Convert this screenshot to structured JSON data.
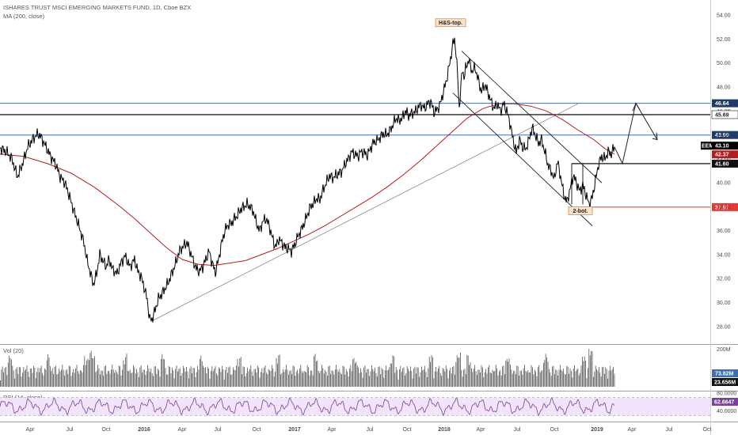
{
  "header": {
    "symbol_line": "ISHARES TRUST MSCI EMERGING MARKETS FUND, 1D, Cboe BZX",
    "ma_line": "MA (200, close)"
  },
  "chart_data": [
    {
      "type": "line",
      "pane": "price",
      "title": "ISHARES TRUST MSCI EMERGING MARKETS FUND, 1D, Cboe BZX",
      "ylim": [
        26.6,
        55.0
      ],
      "y_ticks": [
        "54.00",
        "52.00",
        "50.00",
        "48.00",
        "46.00",
        "44.00",
        "42.00",
        "40.00",
        "38.00",
        "36.00",
        "34.00",
        "32.00",
        "30.00",
        "28.00"
      ],
      "x_ticks": [
        "Apr",
        "Jul",
        "Oct",
        "2016",
        "Apr",
        "Jul",
        "Oct",
        "2017",
        "Apr",
        "Jul",
        "Oct",
        "2018",
        "Apr",
        "Jul",
        "Oct",
        "2019",
        "Apr",
        "Jul",
        "Oct"
      ],
      "series": [
        {
          "name": "EEM",
          "color": "#000000",
          "points": [
            [
              0,
              42.9
            ],
            [
              8,
              42.6
            ],
            [
              15,
              42.0
            ],
            [
              22,
              40.5
            ],
            [
              28,
              41.5
            ],
            [
              35,
              43.0
            ],
            [
              42,
              43.7
            ],
            [
              48,
              44.1
            ],
            [
              52,
              43.8
            ],
            [
              58,
              43.0
            ],
            [
              64,
              42.2
            ],
            [
              70,
              41.6
            ],
            [
              76,
              40.5
            ],
            [
              82,
              40.0
            ],
            [
              88,
              38.8
            ],
            [
              94,
              37.5
            ],
            [
              100,
              36.3
            ],
            [
              106,
              35.0
            ],
            [
              110,
              33.5
            ],
            [
              114,
              32.5
            ],
            [
              118,
              31.5
            ],
            [
              122,
              32.4
            ],
            [
              126,
              34.0
            ],
            [
              130,
              33.5
            ],
            [
              134,
              33.0
            ],
            [
              138,
              33.6
            ],
            [
              142,
              32.8
            ],
            [
              148,
              32.4
            ],
            [
              152,
              33.2
            ],
            [
              158,
              33.9
            ],
            [
              164,
              33.0
            ],
            [
              170,
              33.6
            ],
            [
              174,
              32.6
            ],
            [
              178,
              32.2
            ],
            [
              182,
              31.3
            ],
            [
              186,
              30.2
            ],
            [
              189,
              28.6
            ],
            [
              192,
              28.6
            ],
            [
              196,
              29.4
            ],
            [
              200,
              30.3
            ],
            [
              206,
              30.9
            ],
            [
              212,
              31.6
            ],
            [
              218,
              32.6
            ],
            [
              222,
              33.3
            ],
            [
              226,
              34.2
            ],
            [
              230,
              34.6
            ],
            [
              236,
              35.0
            ],
            [
              240,
              34.3
            ],
            [
              244,
              33.5
            ],
            [
              248,
              32.8
            ],
            [
              252,
              32.6
            ],
            [
              256,
              33.0
            ],
            [
              260,
              33.6
            ],
            [
              264,
              34.3
            ],
            [
              268,
              33.3
            ],
            [
              272,
              32.5
            ],
            [
              276,
              33.6
            ],
            [
              280,
              35.0
            ],
            [
              284,
              36.0
            ],
            [
              288,
              36.5
            ],
            [
              292,
              36.6
            ],
            [
              296,
              37.0
            ],
            [
              300,
              37.3
            ],
            [
              304,
              37.8
            ],
            [
              308,
              38.0
            ],
            [
              312,
              38.2
            ],
            [
              316,
              38.0
            ],
            [
              320,
              37.6
            ],
            [
              324,
              36.6
            ],
            [
              328,
              36.0
            ],
            [
              332,
              36.8
            ],
            [
              336,
              37.0
            ],
            [
              340,
              36.4
            ],
            [
              344,
              35.4
            ],
            [
              348,
              34.6
            ],
            [
              352,
              35.3
            ],
            [
              356,
              35.0
            ],
            [
              360,
              34.6
            ],
            [
              364,
              34.5
            ],
            [
              368,
              34.3
            ],
            [
              372,
              34.8
            ],
            [
              376,
              35.5
            ],
            [
              380,
              36.0
            ],
            [
              384,
              36.6
            ],
            [
              388,
              37.3
            ],
            [
              392,
              38.0
            ],
            [
              396,
              38.3
            ],
            [
              400,
              38.7
            ],
            [
              404,
              38.6
            ],
            [
              408,
              39.4
            ],
            [
              412,
              40.0
            ],
            [
              416,
              40.6
            ],
            [
              420,
              40.4
            ],
            [
              424,
              40.6
            ],
            [
              428,
              40.8
            ],
            [
              432,
              41.0
            ],
            [
              436,
              41.6
            ],
            [
              440,
              42.0
            ],
            [
              444,
              42.6
            ],
            [
              448,
              42.4
            ],
            [
              452,
              42.2
            ],
            [
              456,
              42.6
            ],
            [
              460,
              42.5
            ],
            [
              464,
              42.3
            ],
            [
              468,
              42.9
            ],
            [
              472,
              43.4
            ],
            [
              476,
              43.5
            ],
            [
              480,
              43.8
            ],
            [
              484,
              44.1
            ],
            [
              488,
              44.0
            ],
            [
              492,
              44.3
            ],
            [
              496,
              44.8
            ],
            [
              500,
              45.4
            ],
            [
              504,
              45.2
            ],
            [
              508,
              45.4
            ],
            [
              512,
              46.0
            ],
            [
              516,
              45.6
            ],
            [
              520,
              45.8
            ],
            [
              524,
              45.9
            ],
            [
              528,
              46.3
            ],
            [
              532,
              46.5
            ],
            [
              536,
              46.2
            ],
            [
              540,
              46.6
            ],
            [
              544,
              46.8
            ],
            [
              548,
              45.9
            ],
            [
              552,
              46.1
            ],
            [
              556,
              46.6
            ],
            [
              560,
              47.6
            ],
            [
              564,
              48.6
            ],
            [
              568,
              50.0
            ],
            [
              572,
              51.6
            ],
            [
              574,
              52.0
            ],
            [
              576,
              50.8
            ],
            [
              578,
              48.8
            ],
            [
              580,
              46.2
            ],
            [
              582,
              48.0
            ],
            [
              584,
              49.5
            ],
            [
              586,
              48.8
            ],
            [
              588,
              49.5
            ],
            [
              592,
              50.3
            ],
            [
              596,
              49.3
            ],
            [
              600,
              49.6
            ],
            [
              604,
              48.6
            ],
            [
              608,
              47.6
            ],
            [
              612,
              48.2
            ],
            [
              616,
              47.6
            ],
            [
              620,
              46.8
            ],
            [
              624,
              46.2
            ],
            [
              628,
              46.6
            ],
            [
              632,
              46.0
            ],
            [
              636,
              46.6
            ],
            [
              640,
              46.0
            ],
            [
              644,
              45.0
            ],
            [
              648,
              43.6
            ],
            [
              652,
              42.5
            ],
            [
              656,
              43.6
            ],
            [
              660,
              43.0
            ],
            [
              664,
              42.8
            ],
            [
              668,
              43.6
            ],
            [
              672,
              44.6
            ],
            [
              676,
              44.0
            ],
            [
              680,
              43.3
            ],
            [
              684,
              43.6
            ],
            [
              688,
              42.6
            ],
            [
              692,
              41.5
            ],
            [
              696,
              41.0
            ],
            [
              700,
              40.3
            ],
            [
              704,
              41.8
            ],
            [
              708,
              40.5
            ],
            [
              712,
              39.0
            ],
            [
              716,
              38.4
            ],
            [
              720,
              39.5
            ],
            [
              724,
              40.6
            ],
            [
              728,
              40.0
            ],
            [
              732,
              39.3
            ],
            [
              736,
              39.8
            ],
            [
              740,
              39.0
            ],
            [
              744,
              38.2
            ],
            [
              748,
              38.8
            ],
            [
              752,
              40.2
            ],
            [
              756,
              41.6
            ],
            [
              760,
              42.2
            ],
            [
              764,
              42.0
            ],
            [
              768,
              42.6
            ],
            [
              772,
              42.4
            ],
            [
              776,
              43.0
            ]
          ]
        },
        {
          "name": "MA (200, close)",
          "color": "#b71c1c",
          "points": [
            [
              0,
              42.4
            ],
            [
              30,
              42.2
            ],
            [
              60,
              41.6
            ],
            [
              90,
              40.8
            ],
            [
              120,
              39.6
            ],
            [
              150,
              38.1
            ],
            [
              170,
              37.0
            ],
            [
              190,
              35.8
            ],
            [
              210,
              34.6
            ],
            [
              230,
              33.6
            ],
            [
              250,
              33.2
            ],
            [
              270,
              33.1
            ],
            [
              290,
              33.3
            ],
            [
              310,
              33.5
            ],
            [
              330,
              34.0
            ],
            [
              350,
              34.5
            ],
            [
              370,
              35.1
            ],
            [
              390,
              35.7
            ],
            [
              410,
              36.4
            ],
            [
              430,
              37.2
            ],
            [
              450,
              38.0
            ],
            [
              470,
              38.8
            ],
            [
              490,
              39.7
            ],
            [
              510,
              40.7
            ],
            [
              530,
              41.8
            ],
            [
              550,
              43.0
            ],
            [
              570,
              44.2
            ],
            [
              590,
              45.4
            ],
            [
              610,
              46.2
            ],
            [
              630,
              46.6
            ],
            [
              650,
              46.6
            ],
            [
              670,
              46.4
            ],
            [
              690,
              46.0
            ],
            [
              710,
              45.3
            ],
            [
              730,
              44.4
            ],
            [
              750,
              43.6
            ],
            [
              765,
              42.8
            ],
            [
              776,
              42.4
            ]
          ]
        }
      ],
      "levels": [
        {
          "value": 46.64,
          "label": "46.64",
          "color": "#3f6fb0"
        },
        {
          "value": 45.69,
          "label": "45.69",
          "color": "#222222"
        },
        {
          "value": 43.99,
          "label": "43.99",
          "color": "#3f6fb0"
        },
        {
          "value": 41.6,
          "label": "41.60",
          "color": "#111111"
        },
        {
          "value": 37.97,
          "label": "37.97",
          "color": "#e53935"
        }
      ],
      "badges": [
        {
          "value": 45.69,
          "label": "45.69",
          "bg": "#ffffff",
          "fg": "#222222"
        },
        {
          "value": 43.1,
          "label": "43.10",
          "bg": "#000000",
          "fg": "#ffffff",
          "prefix": "EEM"
        },
        {
          "value": 42.37,
          "label": "42.37",
          "bg": "#b71c1c",
          "fg": "#ffffff"
        }
      ],
      "annotations": [
        {
          "text": "H&S-top.",
          "x": 569,
          "y": 53.3
        },
        {
          "text": "2-bot.",
          "x": 733,
          "y": 37.6
        }
      ]
    },
    {
      "type": "bar",
      "pane": "volume",
      "title": "Vol (20)",
      "y_ticks": [
        "200M"
      ],
      "values_summary": {
        "last_label": "23.656M",
        "ma_label": "73.82M"
      }
    },
    {
      "type": "line",
      "pane": "rsi",
      "title": "RSI (14, close)",
      "ylim": [
        20,
        80
      ],
      "y_ticks": [
        "80.0000",
        "40.0000"
      ],
      "last_value": "62.6647"
    }
  ]
}
